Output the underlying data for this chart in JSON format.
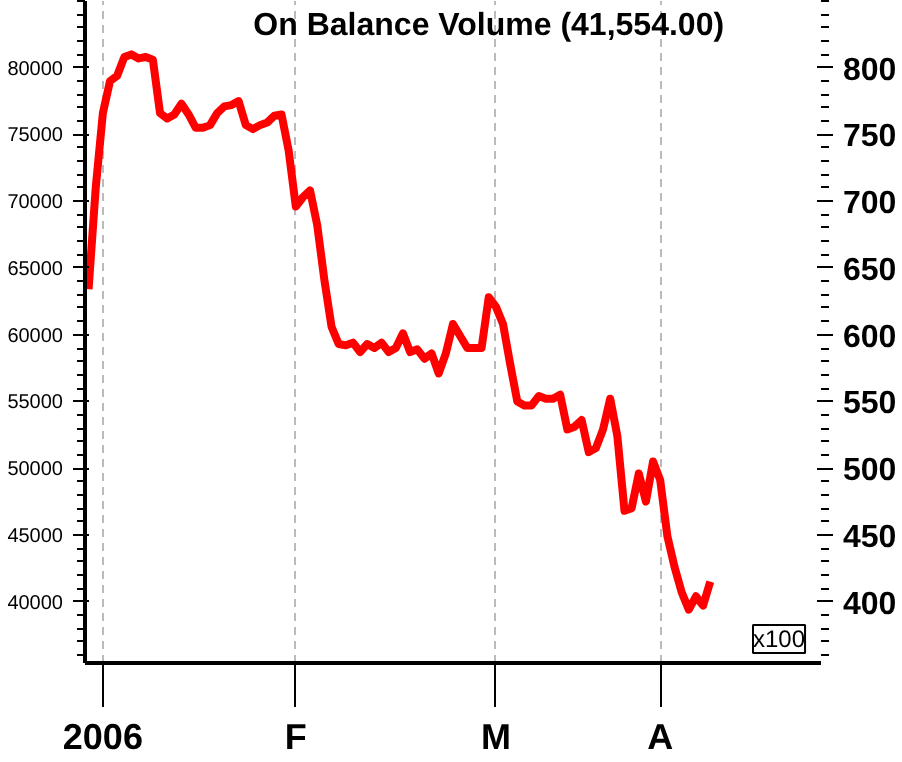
{
  "chart_data": {
    "type": "line",
    "title": "On Balance Volume (41,554.00)",
    "categories": [
      null,
      null,
      "2006",
      null,
      null,
      null,
      null,
      null,
      null,
      null,
      null,
      null,
      null,
      null,
      null,
      null,
      null,
      null,
      null,
      null,
      null,
      null,
      null,
      null,
      null,
      null,
      null,
      null,
      null,
      "F",
      null,
      null,
      null,
      null,
      null,
      null,
      null,
      null,
      null,
      null,
      null,
      null,
      null,
      null,
      null,
      null,
      null,
      null,
      null,
      null,
      null,
      null,
      null,
      null,
      null,
      null,
      null,
      "M",
      null,
      null,
      null,
      null,
      null,
      null,
      null,
      null,
      null,
      null,
      null,
      null,
      null,
      null,
      null,
      null,
      null,
      null,
      null,
      null,
      null,
      null,
      "A",
      null,
      null,
      null,
      null,
      null,
      null,
      null
    ],
    "series": [
      {
        "color": "#ff0000",
        "values": [
          63400,
          71000,
          76600,
          79000,
          79400,
          80800,
          81000,
          80700,
          80800,
          80600,
          76600,
          76200,
          76500,
          77300,
          76500,
          75500,
          75500,
          75700,
          76600,
          77100,
          77200,
          77500,
          75700,
          75400,
          75700,
          75900,
          76400,
          76500,
          73800,
          69600,
          70300,
          70800,
          68200,
          64100,
          60600,
          59300,
          59200,
          59400,
          58700,
          59300,
          59000,
          59400,
          58700,
          59000,
          60100,
          58700,
          58900,
          58200,
          58600,
          57100,
          58600,
          60800,
          59900,
          59000,
          59000,
          59000,
          62800,
          62100,
          60800,
          57800,
          55000,
          54700,
          54700,
          55400,
          55200,
          55200,
          55500,
          52900,
          53100,
          53600,
          51200,
          51500,
          52900,
          55200,
          52400,
          46800,
          47000,
          49600,
          47500,
          50500,
          49100,
          44900,
          42600,
          40700,
          39400,
          40400,
          39700,
          41500
        ]
      }
    ],
    "ylim": [
      35400,
      85000
    ],
    "yticks": [
      40000,
      45000,
      50000,
      55000,
      60000,
      65000,
      70000,
      75000,
      80000
    ],
    "y2lim": [
      354,
      850
    ],
    "y2ticks": [
      400,
      450,
      500,
      550,
      600,
      650,
      700,
      750,
      800
    ],
    "annotations": [
      "x100"
    ],
    "grid": "x",
    "marker": "none",
    "line_style": "solid"
  }
}
